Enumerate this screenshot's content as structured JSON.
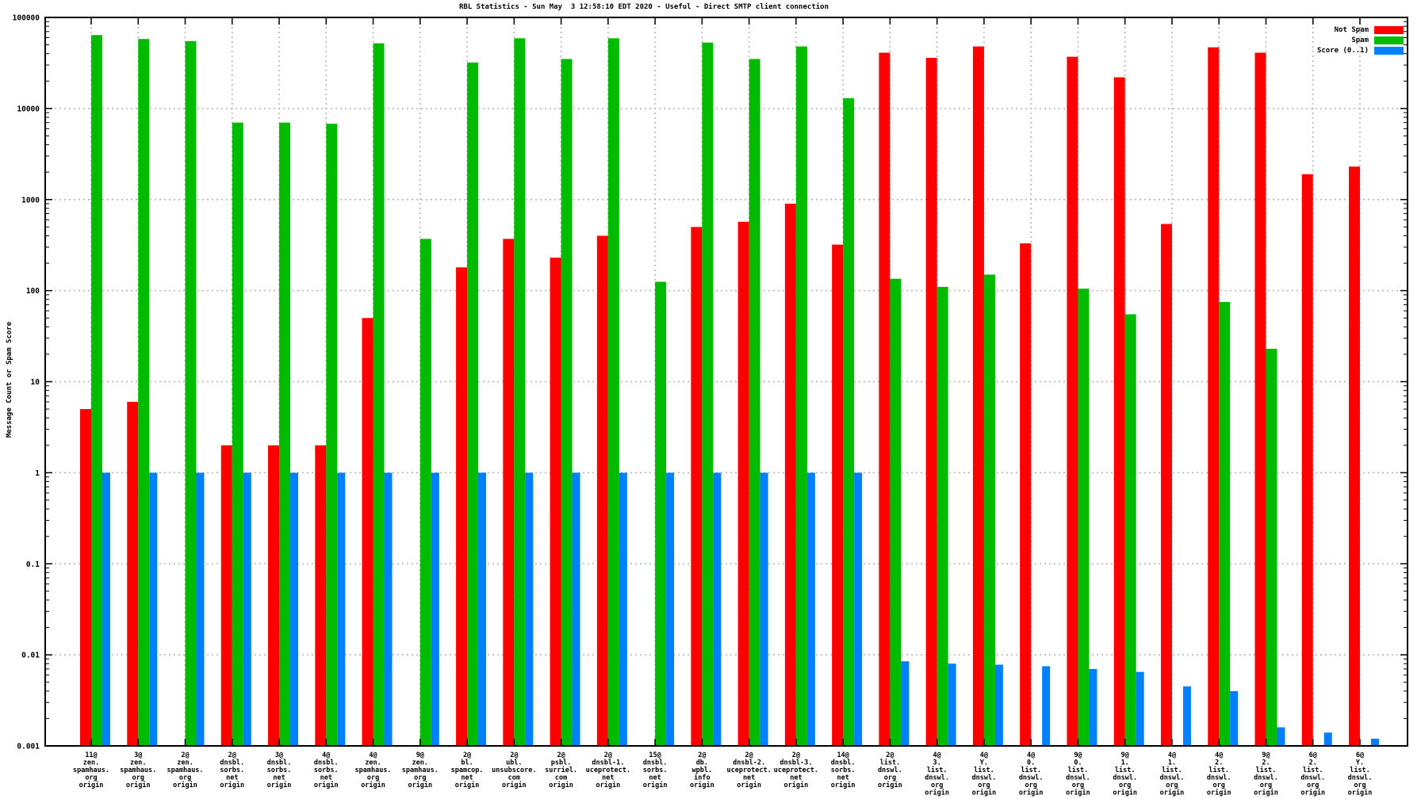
{
  "chart_data": {
    "type": "bar",
    "title": "RBL Statistics - Sun May  3 12:58:10 EDT 2020 - Useful - Direct SMTP client connection",
    "xlabel": "",
    "ylabel": "Message Count or Spam Score",
    "y_scale": "log",
    "ylim": [
      0.001,
      100000
    ],
    "y_ticks": [
      "100000",
      "10000",
      "1000",
      "100",
      "10",
      "1",
      "0.1",
      "0.01",
      "0.001"
    ],
    "grid": true,
    "legend_position": "top-right",
    "colors": {
      "not_spam": "#ff0000",
      "spam": "#00bb00",
      "score": "#0080ff",
      "gridline": "#b4b4b4",
      "axis": "#000000"
    },
    "categories": [
      [
        "11@",
        "zen.",
        "spamhaus.",
        "org",
        "origin"
      ],
      [
        "3@",
        "zen.",
        "spamhaus.",
        "org",
        "origin"
      ],
      [
        "2@",
        "zen.",
        "spamhaus.",
        "org",
        "origin"
      ],
      [
        "2@",
        "dnsbl.",
        "sorbs.",
        "net",
        "origin"
      ],
      [
        "3@",
        "dnsbl.",
        "sorbs.",
        "net",
        "origin"
      ],
      [
        "4@",
        "dnsbl.",
        "sorbs.",
        "net",
        "origin"
      ],
      [
        "4@",
        "zen.",
        "spamhaus.",
        "org",
        "origin"
      ],
      [
        "9@",
        "zen.",
        "spamhaus.",
        "org",
        "origin"
      ],
      [
        "2@",
        "bl.",
        "spamcop.",
        "net",
        "origin"
      ],
      [
        "2@",
        "ubl.",
        "unsubscore.",
        "com",
        "origin"
      ],
      [
        "2@",
        "psbl.",
        "surriel.",
        "com",
        "origin"
      ],
      [
        "2@",
        "dnsbl-1.",
        "uceprotect.",
        "net",
        "origin"
      ],
      [
        "15@",
        "dnsbl.",
        "sorbs.",
        "net",
        "origin"
      ],
      [
        "2@",
        "db.",
        "wpbl.",
        "info",
        "origin"
      ],
      [
        "2@",
        "dnsbl-2.",
        "uceprotect.",
        "net",
        "origin"
      ],
      [
        "2@",
        "dnsbl-3.",
        "uceprotect.",
        "net",
        "origin"
      ],
      [
        "14@",
        "dnsbl.",
        "sorbs.",
        "net",
        "origin"
      ],
      [
        "2@",
        "list.",
        "dnswl.",
        "org",
        "origin"
      ],
      [
        "4@",
        "3.",
        "list.",
        "dnswl.",
        "org",
        "origin"
      ],
      [
        "4@",
        "Y.",
        "list.",
        "dnswl.",
        "org",
        "origin"
      ],
      [
        "4@",
        "0.",
        "list.",
        "dnswl.",
        "org",
        "origin"
      ],
      [
        "9@",
        "0.",
        "list.",
        "dnswl.",
        "org",
        "origin"
      ],
      [
        "9@",
        "1.",
        "list.",
        "dnswl.",
        "org",
        "origin"
      ],
      [
        "4@",
        "1.",
        "list.",
        "dnswl.",
        "org",
        "origin"
      ],
      [
        "4@",
        "2.",
        "list.",
        "dnswl.",
        "org",
        "origin"
      ],
      [
        "9@",
        "2.",
        "list.",
        "dnswl.",
        "org",
        "origin"
      ],
      [
        "6@",
        "2.",
        "list.",
        "dnswl.",
        "org",
        "origin"
      ],
      [
        "6@",
        "Y.",
        "list.",
        "dnswl.",
        "org",
        "origin"
      ]
    ],
    "series": [
      {
        "name": "Not Spam",
        "values": [
          5,
          6,
          0,
          2,
          2,
          2,
          50,
          0,
          180,
          370,
          230,
          400,
          0,
          500,
          570,
          900,
          320,
          41000,
          36000,
          48000,
          330,
          37000,
          22000,
          540,
          47000,
          41000,
          1900,
          2300
        ]
      },
      {
        "name": "Spam",
        "values": [
          64000,
          58000,
          55000,
          7000,
          7000,
          6800,
          52000,
          370,
          32000,
          59000,
          35000,
          59000,
          125,
          53000,
          35000,
          48000,
          13000,
          135,
          110,
          150,
          0,
          105,
          55,
          0,
          75,
          23,
          0,
          0
        ]
      },
      {
        "name": "Score (0..1)",
        "values": [
          1,
          1,
          1,
          1,
          1,
          1,
          1,
          1,
          1,
          1,
          1,
          1,
          1,
          1,
          1,
          1,
          1,
          0.0085,
          0.008,
          0.0078,
          0.0075,
          0.007,
          0.0065,
          0.0045,
          0.004,
          0.0016,
          0.0014,
          0.0012
        ]
      }
    ]
  }
}
